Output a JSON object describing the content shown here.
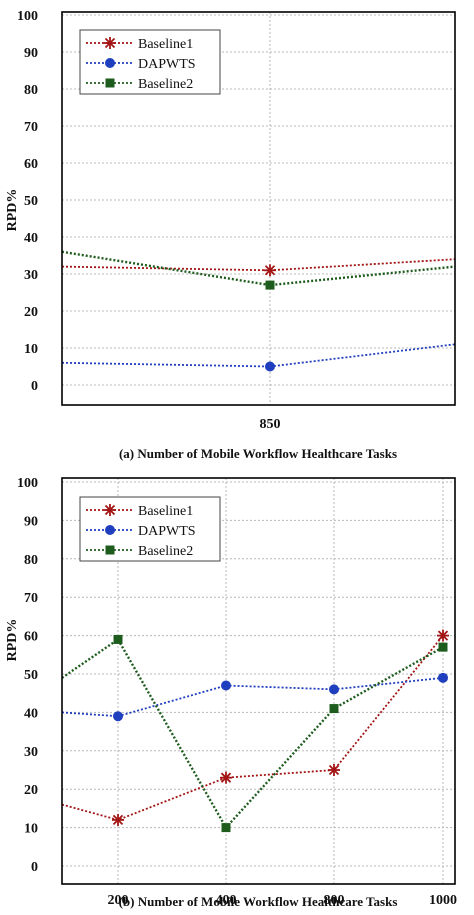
{
  "chart_data": [
    {
      "type": "line",
      "panel": "a",
      "xlabel": "(a) Number of Mobile Workflow Healthcare Tasks",
      "ylabel": "RPD%",
      "x_ticks": [
        850
      ],
      "x_tick_labels": [
        "850"
      ],
      "y_ticks": [
        0,
        10,
        20,
        30,
        40,
        50,
        60,
        70,
        80,
        90,
        100
      ],
      "ylim": [
        0,
        100
      ],
      "grid": true,
      "legend": "top-left",
      "series": [
        {
          "name": "Baseline1",
          "color": "#a31515",
          "marker": "star",
          "x": [
            850
          ],
          "values": [
            31
          ]
        },
        {
          "name": "DAPWTS",
          "color": "#1f3fbf",
          "marker": "circle",
          "x": [
            850
          ],
          "values": [
            5
          ]
        },
        {
          "name": "Baseline2",
          "color": "#1e5c1e",
          "marker": "square",
          "x": [
            850
          ],
          "values": [
            27
          ]
        }
      ]
    },
    {
      "type": "line",
      "panel": "b",
      "xlabel": "(b) Number of Mobile Workflow Healthcare Tasks",
      "ylabel": "RPD%",
      "x_ticks": [
        200,
        400,
        800,
        1000
      ],
      "x_tick_labels": [
        "200",
        "400",
        "800",
        "1000"
      ],
      "y_ticks": [
        0,
        10,
        20,
        30,
        40,
        50,
        60,
        70,
        80,
        90,
        100
      ],
      "ylim": [
        0,
        100
      ],
      "grid": true,
      "legend": "top-left",
      "series": [
        {
          "name": "Baseline1",
          "color": "#a31515",
          "marker": "star",
          "x": [
            200,
            400,
            800,
            1000
          ],
          "values": [
            12,
            23,
            25,
            60
          ]
        },
        {
          "name": "DAPWTS",
          "color": "#1f3fbf",
          "marker": "circle",
          "x": [
            200,
            400,
            800,
            1000
          ],
          "values": [
            39,
            47,
            46,
            49
          ]
        },
        {
          "name": "Baseline2",
          "color": "#1e5c1e",
          "marker": "square",
          "x": [
            200,
            400,
            800,
            1000
          ],
          "values": [
            59,
            10,
            41,
            57
          ]
        }
      ]
    }
  ]
}
